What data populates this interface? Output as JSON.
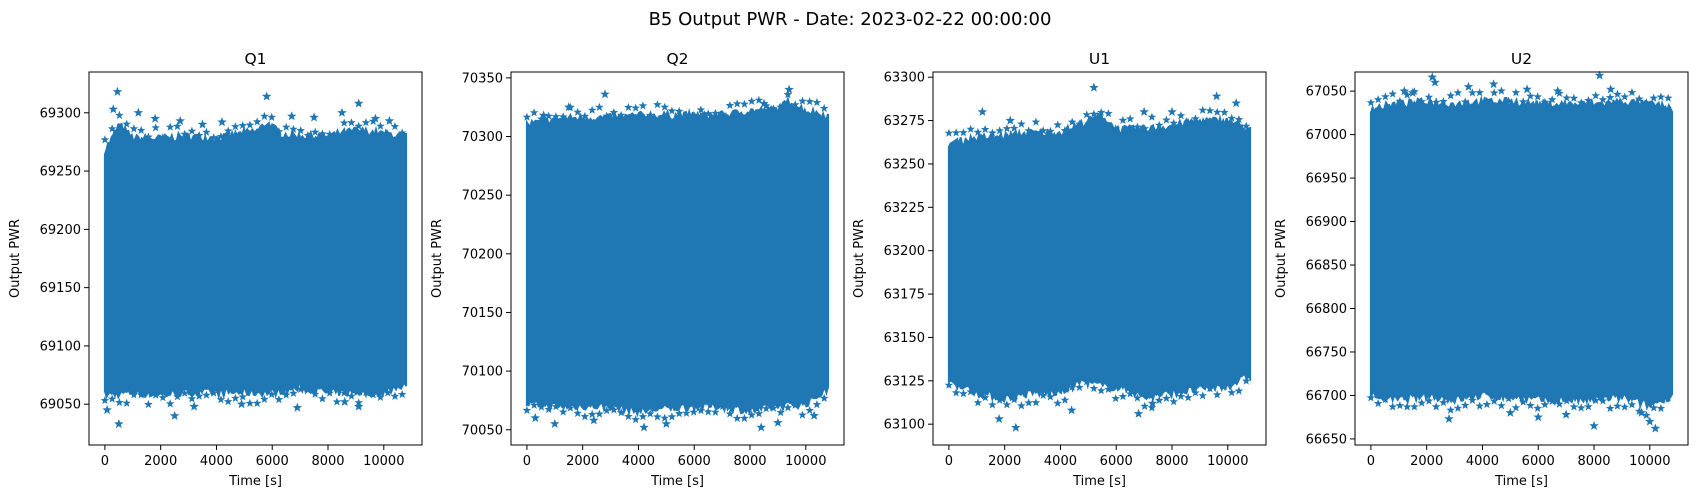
{
  "figure": {
    "title": "B5 Output PWR - Date: 2023-02-22 00:00:00"
  },
  "colors": {
    "series": "#1f77b4",
    "axes": "#000000",
    "background": "#ffffff"
  },
  "chart_data": [
    {
      "type": "scatter",
      "title": "Q1",
      "xlabel": "Time [s]",
      "ylabel": "Output PWR",
      "marker": "star",
      "xlim": [
        -570,
        11370
      ],
      "ylim": [
        69015,
        69335
      ],
      "xticks": [
        0,
        2000,
        4000,
        6000,
        8000,
        10000
      ],
      "yticks": [
        69050,
        69100,
        69150,
        69200,
        69250,
        69300
      ],
      "band": {
        "x_range": [
          0,
          10800
        ],
        "top": [
          [
            0,
            69268
          ],
          [
            300,
            69280
          ],
          [
            500,
            69290
          ],
          [
            1000,
            69278
          ],
          [
            2000,
            69278
          ],
          [
            3000,
            69280
          ],
          [
            4000,
            69278
          ],
          [
            5500,
            69285
          ],
          [
            5800,
            69292
          ],
          [
            6300,
            69282
          ],
          [
            7000,
            69280
          ],
          [
            8000,
            69280
          ],
          [
            9000,
            69285
          ],
          [
            10000,
            69282
          ],
          [
            10800,
            69280
          ]
        ],
        "bottom": [
          [
            0,
            69058
          ],
          [
            1000,
            69060
          ],
          [
            2000,
            69058
          ],
          [
            3000,
            69060
          ],
          [
            4000,
            69060
          ],
          [
            5000,
            69060
          ],
          [
            6000,
            69060
          ],
          [
            7000,
            69064
          ],
          [
            8000,
            69060
          ],
          [
            9000,
            69060
          ],
          [
            10000,
            69060
          ],
          [
            10800,
            69068
          ]
        ]
      },
      "outliers": [
        [
          450,
          69318
        ],
        [
          300,
          69303
        ],
        [
          1200,
          69300
        ],
        [
          1800,
          69295
        ],
        [
          2700,
          69293
        ],
        [
          3500,
          69290
        ],
        [
          4200,
          69292
        ],
        [
          5800,
          69314
        ],
        [
          6700,
          69297
        ],
        [
          7500,
          69296
        ],
        [
          8500,
          69300
        ],
        [
          9100,
          69308
        ],
        [
          9700,
          69295
        ],
        [
          10200,
          69293
        ],
        [
          80,
          69045
        ],
        [
          500,
          69033
        ],
        [
          2500,
          69040
        ],
        [
          3200,
          69048
        ],
        [
          4900,
          69050
        ],
        [
          6900,
          69047
        ],
        [
          8600,
          69052
        ],
        [
          9100,
          69048
        ]
      ]
    },
    {
      "type": "scatter",
      "title": "Q2",
      "xlabel": "Time [s]",
      "ylabel": "Output PWR",
      "marker": "star",
      "xlim": [
        -570,
        11370
      ],
      "ylim": [
        70037,
        70355
      ],
      "xticks": [
        0,
        2000,
        4000,
        6000,
        8000,
        10000
      ],
      "yticks": [
        70050,
        70100,
        70150,
        70200,
        70250,
        70300,
        70350
      ],
      "band": {
        "x_range": [
          0,
          10800
        ],
        "top": [
          [
            0,
            70310
          ],
          [
            1000,
            70315
          ],
          [
            2000,
            70316
          ],
          [
            3000,
            70316
          ],
          [
            4000,
            70318
          ],
          [
            5000,
            70318
          ],
          [
            6000,
            70318
          ],
          [
            7000,
            70318
          ],
          [
            8000,
            70322
          ],
          [
            9000,
            70323
          ],
          [
            9400,
            70330
          ],
          [
            10000,
            70322
          ],
          [
            10800,
            70318
          ]
        ],
        "bottom": [
          [
            0,
            70072
          ],
          [
            1000,
            70070
          ],
          [
            2000,
            70070
          ],
          [
            3000,
            70070
          ],
          [
            4000,
            70066
          ],
          [
            5000,
            70068
          ],
          [
            6000,
            70070
          ],
          [
            7000,
            70070
          ],
          [
            8000,
            70066
          ],
          [
            9000,
            70070
          ],
          [
            10000,
            70072
          ],
          [
            10800,
            70085
          ]
        ]
      },
      "outliers": [
        [
          2800,
          70336
        ],
        [
          9400,
          70340
        ],
        [
          1500,
          70325
        ],
        [
          8500,
          70328
        ],
        [
          600,
          70318
        ],
        [
          300,
          70060
        ],
        [
          1000,
          70055
        ],
        [
          2400,
          70058
        ],
        [
          4200,
          70052
        ],
        [
          5000,
          70055
        ],
        [
          8400,
          70052
        ],
        [
          9000,
          70056
        ],
        [
          10300,
          70062
        ]
      ]
    },
    {
      "type": "scatter",
      "title": "U1",
      "xlabel": "Time [s]",
      "ylabel": "Output PWR",
      "marker": "star",
      "xlim": [
        -570,
        11370
      ],
      "ylim": [
        63088,
        63303
      ],
      "xticks": [
        0,
        2000,
        4000,
        6000,
        8000,
        10000
      ],
      "yticks": [
        63100,
        63125,
        63150,
        63175,
        63200,
        63225,
        63250,
        63275,
        63300
      ],
      "band": {
        "x_range": [
          0,
          10800
        ],
        "top": [
          [
            0,
            63262
          ],
          [
            1000,
            63265
          ],
          [
            2000,
            63266
          ],
          [
            3000,
            63268
          ],
          [
            4000,
            63268
          ],
          [
            5000,
            63275
          ],
          [
            5500,
            63278
          ],
          [
            6000,
            63270
          ],
          [
            7000,
            63270
          ],
          [
            8000,
            63272
          ],
          [
            9000,
            63275
          ],
          [
            10000,
            63275
          ],
          [
            10800,
            63270
          ]
        ],
        "bottom": [
          [
            0,
            63125
          ],
          [
            1000,
            63118
          ],
          [
            2000,
            63115
          ],
          [
            3000,
            63118
          ],
          [
            4000,
            63118
          ],
          [
            4800,
            63125
          ],
          [
            5500,
            63122
          ],
          [
            6500,
            63120
          ],
          [
            7000,
            63115
          ],
          [
            8000,
            63118
          ],
          [
            9000,
            63120
          ],
          [
            10000,
            63122
          ],
          [
            10800,
            63128
          ]
        ]
      },
      "outliers": [
        [
          5200,
          63294
        ],
        [
          1200,
          63280
        ],
        [
          2200,
          63275
        ],
        [
          9600,
          63289
        ],
        [
          10300,
          63285
        ],
        [
          7000,
          63280
        ],
        [
          8000,
          63280
        ],
        [
          2400,
          63098
        ],
        [
          1800,
          63103
        ],
        [
          6800,
          63106
        ],
        [
          4400,
          63108
        ],
        [
          7300,
          63112
        ]
      ]
    },
    {
      "type": "scatter",
      "title": "U2",
      "xlabel": "Time [s]",
      "ylabel": "Output PWR",
      "marker": "star",
      "xlim": [
        -570,
        11370
      ],
      "ylim": [
        66643,
        67072
      ],
      "xticks": [
        0,
        2000,
        4000,
        6000,
        8000,
        10000
      ],
      "yticks": [
        66650,
        66700,
        66750,
        66800,
        66850,
        66900,
        66950,
        67000,
        67050
      ],
      "band": {
        "x_range": [
          0,
          10800
        ],
        "top": [
          [
            0,
            67030
          ],
          [
            1000,
            67035
          ],
          [
            2000,
            67038
          ],
          [
            3000,
            67035
          ],
          [
            4000,
            67038
          ],
          [
            5000,
            67038
          ],
          [
            6000,
            67035
          ],
          [
            7000,
            67035
          ],
          [
            8000,
            67035
          ],
          [
            9000,
            67038
          ],
          [
            10000,
            67035
          ],
          [
            10800,
            67030
          ]
        ],
        "bottom": [
          [
            0,
            66700
          ],
          [
            1000,
            66695
          ],
          [
            2000,
            66700
          ],
          [
            3000,
            66695
          ],
          [
            4000,
            66700
          ],
          [
            5000,
            66698
          ],
          [
            6000,
            66695
          ],
          [
            7000,
            66695
          ],
          [
            8000,
            66695
          ],
          [
            9000,
            66698
          ],
          [
            10000,
            66688
          ],
          [
            10800,
            66700
          ]
        ]
      },
      "outliers": [
        [
          2200,
          67066
        ],
        [
          8200,
          67068
        ],
        [
          1200,
          67050
        ],
        [
          1500,
          67048
        ],
        [
          3500,
          67055
        ],
        [
          4400,
          67058
        ],
        [
          5600,
          67052
        ],
        [
          6700,
          67050
        ],
        [
          8600,
          67052
        ],
        [
          2300,
          67060
        ],
        [
          2800,
          66673
        ],
        [
          5000,
          66680
        ],
        [
          6000,
          66675
        ],
        [
          7000,
          66678
        ],
        [
          8000,
          66665
        ],
        [
          10200,
          66662
        ],
        [
          10000,
          66670
        ],
        [
          9700,
          66680
        ]
      ]
    }
  ]
}
